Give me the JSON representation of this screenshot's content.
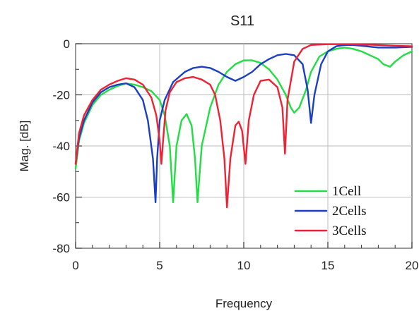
{
  "chart_data": {
    "type": "line",
    "title": "S11",
    "xlabel": "Frequency",
    "ylabel": "Mag. [dB]",
    "xlim": [
      0,
      20
    ],
    "ylim": [
      -80,
      0
    ],
    "xticks": [
      "0",
      "5",
      "10",
      "15",
      "20"
    ],
    "yticks": [
      "0",
      "-20",
      "-40",
      "-60",
      "-80"
    ],
    "grid": true,
    "legend_position": "bottom-right",
    "series": [
      {
        "name": "1Cell",
        "color": "#22dd44",
        "x": [
          0,
          0.2,
          0.5,
          1,
          1.5,
          2,
          2.5,
          3,
          3.5,
          4,
          4.5,
          5,
          5.3,
          5.6,
          5.8,
          6.0,
          6.3,
          6.6,
          6.9,
          7.1,
          7.25,
          7.5,
          8,
          8.5,
          9,
          9.5,
          10,
          10.5,
          11,
          11.5,
          12,
          12.5,
          12.8,
          13.0,
          13.3,
          13.7,
          14,
          14.5,
          15,
          15.5,
          16,
          16.5,
          17,
          17.5,
          18,
          18.3,
          18.7,
          19,
          19.5,
          20
        ],
        "y": [
          -49,
          -38,
          -31,
          -24,
          -20,
          -18,
          -16.5,
          -15.5,
          -16,
          -17,
          -18.5,
          -22,
          -28,
          -40,
          -62,
          -40,
          -30,
          -27.5,
          -32,
          -45,
          -62,
          -40,
          -25,
          -16,
          -11,
          -8,
          -6.5,
          -6.5,
          -7.5,
          -10,
          -14,
          -20,
          -25,
          -27,
          -25,
          -18,
          -11,
          -5,
          -3,
          -2,
          -1.5,
          -2,
          -3,
          -4.5,
          -6,
          -8,
          -9,
          -7,
          -4.5,
          -3
        ]
      },
      {
        "name": "2Cells",
        "color": "#1a3fc4",
        "x": [
          0,
          0.2,
          0.5,
          1,
          1.5,
          2,
          2.5,
          3,
          3.5,
          4,
          4.3,
          4.6,
          4.75,
          4.85,
          5.0,
          5.3,
          5.8,
          6.5,
          7,
          7.5,
          8,
          8.5,
          9,
          9.5,
          10,
          10.5,
          11,
          11.5,
          12,
          12.5,
          13,
          13.5,
          13.8,
          14.0,
          14.2,
          14.6,
          15,
          15.5,
          16,
          16.5,
          17,
          18,
          19,
          20
        ],
        "y": [
          -47,
          -37,
          -30,
          -23,
          -19,
          -17,
          -16,
          -15.5,
          -17,
          -22,
          -30,
          -45,
          -62,
          -45,
          -30,
          -22,
          -15,
          -11,
          -9.5,
          -9,
          -9.5,
          -11,
          -13,
          -14.5,
          -13,
          -11,
          -8,
          -6,
          -4.5,
          -4,
          -4.5,
          -8,
          -18,
          -31,
          -20,
          -8,
          -3,
          -1,
          -0.5,
          -0.5,
          -0.8,
          -1.5,
          -1.5,
          -1.2
        ]
      },
      {
        "name": "3Cells",
        "color": "#ee2233",
        "x": [
          0,
          0.2,
          0.5,
          1,
          1.5,
          2,
          2.5,
          3,
          3.5,
          4,
          4.5,
          4.8,
          5.0,
          5.1,
          5.2,
          5.35,
          5.6,
          6,
          6.5,
          7,
          7.5,
          8,
          8.3,
          8.6,
          8.85,
          9.0,
          9.2,
          9.5,
          9.7,
          9.9,
          10.1,
          10.3,
          10.6,
          11,
          11.5,
          12,
          12.3,
          12.45,
          12.6,
          13,
          13.5,
          14,
          15,
          16,
          17,
          18,
          19,
          20
        ],
        "y": [
          -47,
          -35,
          -28,
          -22,
          -18,
          -16,
          -14.5,
          -13.5,
          -14,
          -16,
          -21,
          -28,
          -38,
          -47,
          -38,
          -26,
          -19,
          -15,
          -13.5,
          -13,
          -14,
          -16,
          -20,
          -30,
          -45,
          -64,
          -45,
          -32,
          -30.5,
          -34,
          -47,
          -30,
          -20,
          -14.5,
          -14,
          -17,
          -25,
          -43,
          -22,
          -7,
          -2,
          -0.5,
          -0.2,
          -0.2,
          -0.3,
          -0.5,
          -0.8,
          -1
        ]
      }
    ]
  }
}
